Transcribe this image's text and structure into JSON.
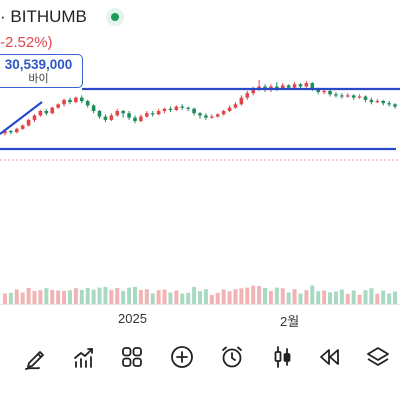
{
  "header": {
    "title": "· BITHUMB",
    "change": "-2.52%)",
    "live_indicator_color": "#1e9c5b"
  },
  "price_tag": {
    "price": "30,539,000",
    "side": "바이",
    "accent": "#3b63d0"
  },
  "trendlines": {
    "color": "#2a49c8",
    "items": [
      "resistance-line",
      "support-line",
      "rising-line"
    ]
  },
  "colors": {
    "up": "#e0464a",
    "down": "#1f8c5c",
    "volume_up": "#f2b3b4",
    "volume_down": "#a9d9c3"
  },
  "x_axis": {
    "labels": [
      "2025",
      "2월"
    ]
  },
  "toolbar": {
    "tools": [
      {
        "name": "draw-tool",
        "icon": "pen-icon"
      },
      {
        "name": "indicator-tool",
        "icon": "trend-chart-icon"
      },
      {
        "name": "layout-tool",
        "icon": "grid-icon"
      },
      {
        "name": "add-tool",
        "icon": "plus-circle-icon"
      },
      {
        "name": "alert-tool",
        "icon": "alarm-clock-icon"
      },
      {
        "name": "candle-type-tool",
        "icon": "candlestick-icon"
      },
      {
        "name": "replay-tool",
        "icon": "rewind-icon"
      },
      {
        "name": "layers-tool",
        "icon": "layers-icon"
      }
    ]
  },
  "chart_data": {
    "type": "candlestick",
    "description_units": "relative price levels (axis values not shown)",
    "x_labels": [
      "2025",
      "2월"
    ],
    "candles": [
      [
        40,
        42,
        38,
        43
      ],
      [
        42,
        41,
        39,
        43
      ],
      [
        41,
        44,
        40,
        45
      ],
      [
        44,
        47,
        43,
        48
      ],
      [
        47,
        52,
        46,
        53
      ],
      [
        52,
        56,
        50,
        57
      ],
      [
        56,
        60,
        55,
        61
      ],
      [
        60,
        58,
        56,
        62
      ],
      [
        58,
        63,
        57,
        64
      ],
      [
        63,
        66,
        62,
        67
      ],
      [
        66,
        70,
        64,
        71
      ],
      [
        70,
        68,
        66,
        72
      ],
      [
        68,
        72,
        67,
        73
      ],
      [
        72,
        69,
        67,
        74
      ],
      [
        69,
        65,
        63,
        70
      ],
      [
        65,
        60,
        58,
        66
      ],
      [
        60,
        55,
        53,
        61
      ],
      [
        55,
        52,
        50,
        57
      ],
      [
        52,
        56,
        51,
        58
      ],
      [
        56,
        60,
        55,
        62
      ],
      [
        60,
        58,
        54,
        61
      ],
      [
        58,
        54,
        52,
        60
      ],
      [
        54,
        51,
        49,
        56
      ],
      [
        51,
        55,
        50,
        57
      ],
      [
        55,
        58,
        54,
        60
      ],
      [
        58,
        57,
        55,
        60
      ],
      [
        57,
        60,
        56,
        62
      ],
      [
        60,
        62,
        58,
        63
      ],
      [
        62,
        61,
        59,
        64
      ],
      [
        61,
        64,
        60,
        65
      ],
      [
        64,
        63,
        61,
        66
      ],
      [
        63,
        62,
        60,
        64
      ],
      [
        62,
        58,
        56,
        63
      ],
      [
        58,
        56,
        53,
        59
      ],
      [
        56,
        54,
        52,
        58
      ],
      [
        54,
        55,
        53,
        57
      ],
      [
        55,
        57,
        54,
        58
      ],
      [
        57,
        60,
        56,
        61
      ],
      [
        60,
        63,
        59,
        65
      ],
      [
        63,
        66,
        62,
        68
      ],
      [
        66,
        72,
        65,
        74
      ],
      [
        72,
        76,
        70,
        78
      ],
      [
        76,
        80,
        74,
        82
      ],
      [
        80,
        82,
        78,
        88
      ],
      [
        82,
        79,
        77,
        84
      ],
      [
        79,
        82,
        77,
        84
      ],
      [
        82,
        80,
        78,
        86
      ],
      [
        80,
        83,
        79,
        85
      ],
      [
        83,
        81,
        79,
        84
      ],
      [
        81,
        84,
        80,
        86
      ],
      [
        84,
        82,
        80,
        85
      ],
      [
        82,
        85,
        81,
        87
      ],
      [
        85,
        80,
        78,
        86
      ],
      [
        80,
        77,
        75,
        81
      ],
      [
        77,
        78,
        75,
        80
      ],
      [
        78,
        75,
        73,
        79
      ],
      [
        75,
        74,
        72,
        77
      ],
      [
        74,
        73,
        71,
        76
      ],
      [
        73,
        74,
        72,
        76
      ],
      [
        74,
        72,
        70,
        75
      ],
      [
        72,
        73,
        71,
        75
      ],
      [
        73,
        70,
        68,
        74
      ],
      [
        70,
        68,
        66,
        72
      ],
      [
        68,
        69,
        67,
        71
      ],
      [
        69,
        67,
        65,
        70
      ],
      [
        67,
        66,
        64,
        69
      ],
      [
        66,
        64,
        62,
        67
      ]
    ],
    "support_level": 28,
    "resistance_level": 86
  }
}
